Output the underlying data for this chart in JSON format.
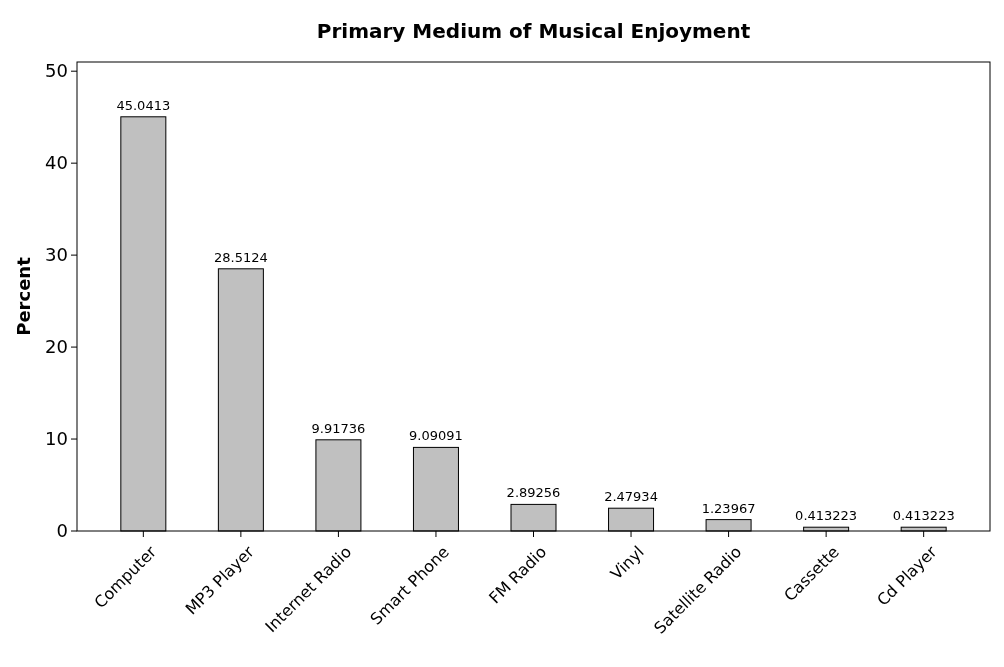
{
  "chart_data": {
    "type": "bar",
    "title": "Primary Medium of Musical Enjoyment",
    "ylabel": "Percent",
    "categories": [
      "Computer",
      "MP3 Player",
      "Internet Radio",
      "Smart Phone",
      "FM Radio",
      "Vinyl",
      "Satellite Radio",
      "Cassette",
      "Cd Player"
    ],
    "values": [
      45.0413,
      28.5124,
      9.91736,
      9.09091,
      2.89256,
      2.47934,
      1.23967,
      0.413223,
      0.413223
    ],
    "color": "#c0c0c0",
    "ylim": [
      0,
      51
    ],
    "yticks": [
      0,
      10,
      20,
      30,
      40,
      50
    ],
    "data_labels": true,
    "grid": false
  }
}
